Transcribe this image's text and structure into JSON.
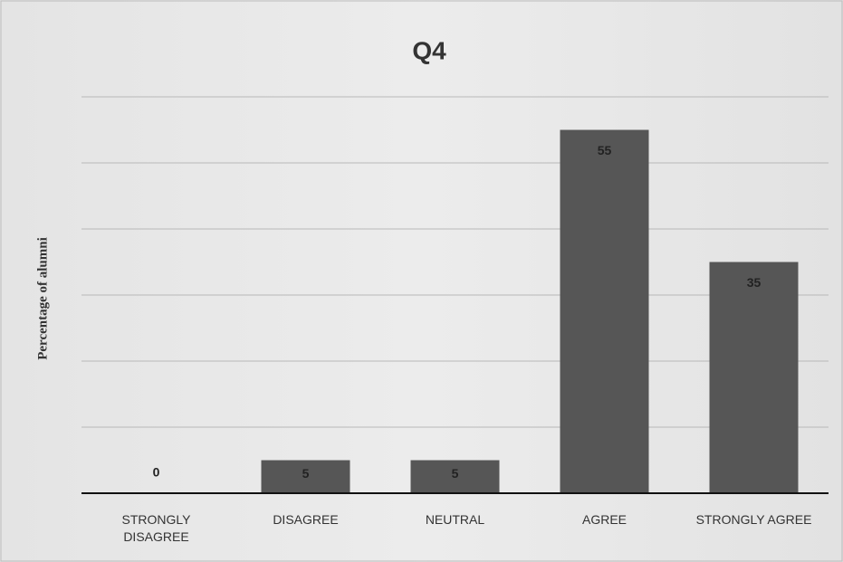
{
  "chart_data": {
    "type": "bar",
    "title": "Q4",
    "y_label": "Percentage of alumni",
    "categories": [
      "STRONGLY DISAGREE",
      "DISAGREE",
      "NEUTRAL",
      "AGREE",
      "STRONGLY AGREE"
    ],
    "values": [
      0,
      5,
      5,
      55,
      35
    ],
    "color": "#565656",
    "ylim": [
      0,
      60
    ],
    "yticks": [
      0,
      10,
      20,
      30,
      40,
      50,
      60
    ],
    "grid": true
  }
}
